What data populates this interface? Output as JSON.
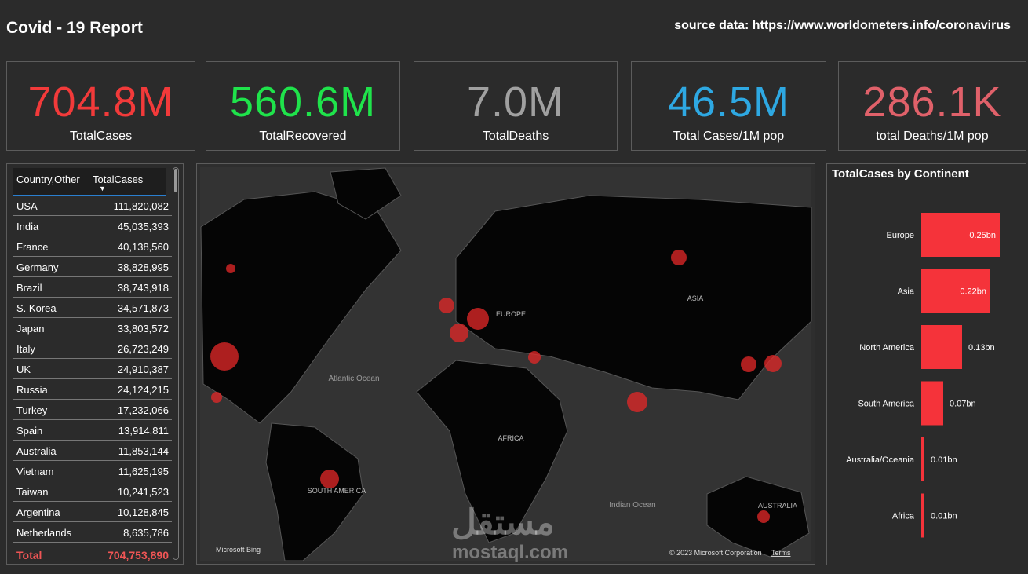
{
  "header": {
    "title": "Covid - 19 Report",
    "source": "source data: https://www.worldometers.info/coronavirus"
  },
  "cards": [
    {
      "value": "704.8M",
      "label": "TotalCases",
      "color": "#f23a3a"
    },
    {
      "value": "560.6M",
      "label": "TotalRecovered",
      "color": "#1fe34b"
    },
    {
      "value": "7.0M",
      "label": "TotalDeaths",
      "color": "#a0a0a0"
    },
    {
      "value": "46.5M",
      "label": "Total Cases/1M pop",
      "color": "#2ea8e2"
    },
    {
      "value": "286.1K",
      "label": "total Deaths/1M pop",
      "color": "#e0616a"
    }
  ],
  "table": {
    "columns": [
      "Country,Other",
      "TotalCases"
    ],
    "rows": [
      [
        "USA",
        "111,820,082"
      ],
      [
        "India",
        "45,035,393"
      ],
      [
        "France",
        "40,138,560"
      ],
      [
        "Germany",
        "38,828,995"
      ],
      [
        "Brazil",
        "38,743,918"
      ],
      [
        "S. Korea",
        "34,571,873"
      ],
      [
        "Japan",
        "33,803,572"
      ],
      [
        "Italy",
        "26,723,249"
      ],
      [
        "UK",
        "24,910,387"
      ],
      [
        "Russia",
        "24,124,215"
      ],
      [
        "Turkey",
        "17,232,066"
      ],
      [
        "Spain",
        "13,914,811"
      ],
      [
        "Australia",
        "11,853,144"
      ],
      [
        "Vietnam",
        "11,625,195"
      ],
      [
        "Taiwan",
        "10,241,523"
      ],
      [
        "Argentina",
        "10,128,845"
      ],
      [
        "Netherlands",
        "8,635,786"
      ]
    ],
    "total": [
      "Total",
      "704,753,890"
    ]
  },
  "map": {
    "labels": [
      "Atlantic Ocean",
      "EUROPE",
      "ASIA",
      "AFRICA",
      "SOUTH AMERICA",
      "Indian Ocean",
      "AUSTRALIA"
    ],
    "attribution": "Microsoft Bing",
    "copyright": "© 2023 Microsoft Corporation",
    "terms": "Terms"
  },
  "chart_data": {
    "type": "bar",
    "title": "TotalCases by Continent",
    "categories": [
      "Europe",
      "Asia",
      "North America",
      "South America",
      "Australia/Oceania",
      "Africa"
    ],
    "values": [
      0.25,
      0.22,
      0.13,
      0.07,
      0.01,
      0.01
    ],
    "value_labels": [
      "0.25bn",
      "0.22bn",
      "0.13bn",
      "0.07bn",
      "0.01bn",
      "0.01bn"
    ],
    "color": "#f5333a"
  },
  "watermark": {
    "logo": "مستقل",
    "text": "mostaql.com"
  }
}
